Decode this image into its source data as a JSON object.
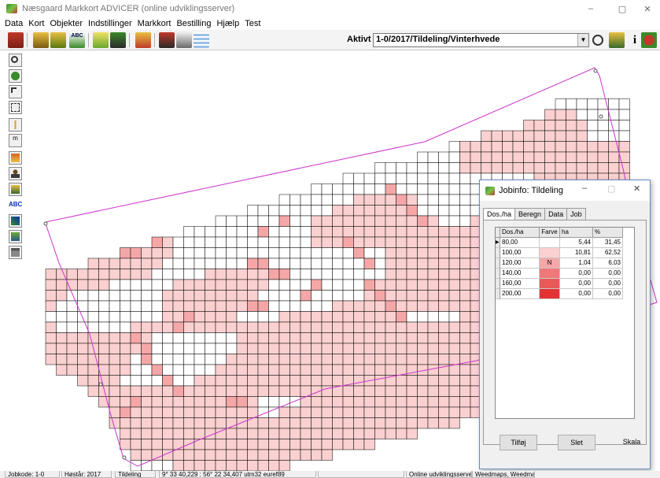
{
  "window": {
    "title": "Næsgaard Markkort ADVICER (online udviklingsserver)",
    "minimize": "–",
    "restore": "▢",
    "close": "✕"
  },
  "menu": [
    "Data",
    "Kort",
    "Objekter",
    "Indstillinger",
    "Markkort",
    "Bestilling",
    "Hjælp",
    "Test"
  ],
  "toolbar": {
    "aktivt_job_label": "Aktivt job",
    "job_value": "1-0/2017/Tildeling/Vinterhvede",
    "dropdown_arrow": "▼",
    "icons": [
      "data-icon",
      "open-field-icon",
      "save-field-icon",
      "abc-label-icon",
      "crop-icon",
      "fertilizer-icon",
      "tractor-icon",
      "report-icon",
      "print-preview-icon",
      "grid-icon"
    ],
    "right_icons": [
      "search-icon",
      "advisor-icon",
      "info-icon",
      "exit-icon"
    ]
  },
  "left_tools": [
    "zoom-icon",
    "refresh-icon",
    "pointer-icon",
    "select-icon",
    "pencil-icon",
    "measure-icon",
    "split-icon",
    "person-icon",
    "add-point-icon",
    "abc-text-icon",
    "magic-icon",
    "layers-icon",
    "calculator-icon"
  ],
  "left_tools_labels": {
    "measure": "m",
    "abc": "ABC"
  },
  "colors": {
    "c1": "#ffffff",
    "c2": "#fbd0d0",
    "c3": "#f5a7a7",
    "c4": "#f07878",
    "c5": "#ea5858",
    "c6": "#e63232",
    "boundary": "#cc33cc"
  },
  "dialog": {
    "title": "Jobinfo: Tildeling",
    "tabs": [
      "Dos./ha",
      "Beregn",
      "Data",
      "Job"
    ],
    "columns": [
      "Dos./ha",
      "Farve",
      "ha",
      "%"
    ],
    "rows": [
      {
        "dos": "80,00",
        "color": "#ffffff",
        "mark": "",
        "ha": "5,44",
        "pct": "31,45"
      },
      {
        "dos": "100,00",
        "color": "#fbd0d0",
        "mark": "",
        "ha": "10,81",
        "pct": "62,52"
      },
      {
        "dos": "120,00",
        "color": "#f5a7a7",
        "mark": "N",
        "ha": "1,04",
        "pct": "6,03"
      },
      {
        "dos": "140,00",
        "color": "#f07878",
        "mark": "",
        "ha": "0,00",
        "pct": "0,00"
      },
      {
        "dos": "160,00",
        "color": "#ea5858",
        "mark": "",
        "ha": "0,00",
        "pct": "0,00"
      },
      {
        "dos": "200,00",
        "color": "#e63232",
        "mark": "",
        "ha": "0,00",
        "pct": "0,00"
      }
    ],
    "buttons": {
      "add": "Tilføj",
      "delete": "Slet",
      "scale": "Skala"
    }
  },
  "status": {
    "jobkode": "Jobkode: 1-0",
    "hoestaar": "Høstår: 2017",
    "type": "Tildeling",
    "coords": "9° 33 40,229 : 56° 22 34,407  utm32  euref89",
    "server": "Online udviklingsserver",
    "weedmaps": "Weedmaps, Weedmaps"
  }
}
